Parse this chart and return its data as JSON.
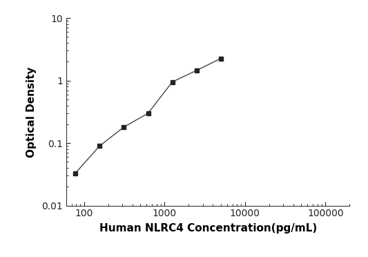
{
  "x_values": [
    78,
    156,
    312,
    625,
    1250,
    2500,
    5000
  ],
  "y_values": [
    0.033,
    0.09,
    0.18,
    0.3,
    0.95,
    1.45,
    2.25
  ],
  "xlim": [
    60,
    200000
  ],
  "ylim": [
    0.01,
    10
  ],
  "xlabel": "Human NLRC4 Concentration(pg/mL)",
  "ylabel": "Optical Density",
  "marker": "s",
  "marker_color": "#222222",
  "line_color": "#444444",
  "marker_size": 5,
  "line_width": 1.0,
  "background_color": "#ffffff",
  "spine_color": "#333333",
  "tick_color": "#222222",
  "xlabel_fontsize": 11,
  "ylabel_fontsize": 11,
  "tick_fontsize": 10,
  "xticks": [
    100,
    1000,
    10000,
    100000
  ],
  "yticks": [
    0.01,
    0.1,
    1,
    10
  ]
}
